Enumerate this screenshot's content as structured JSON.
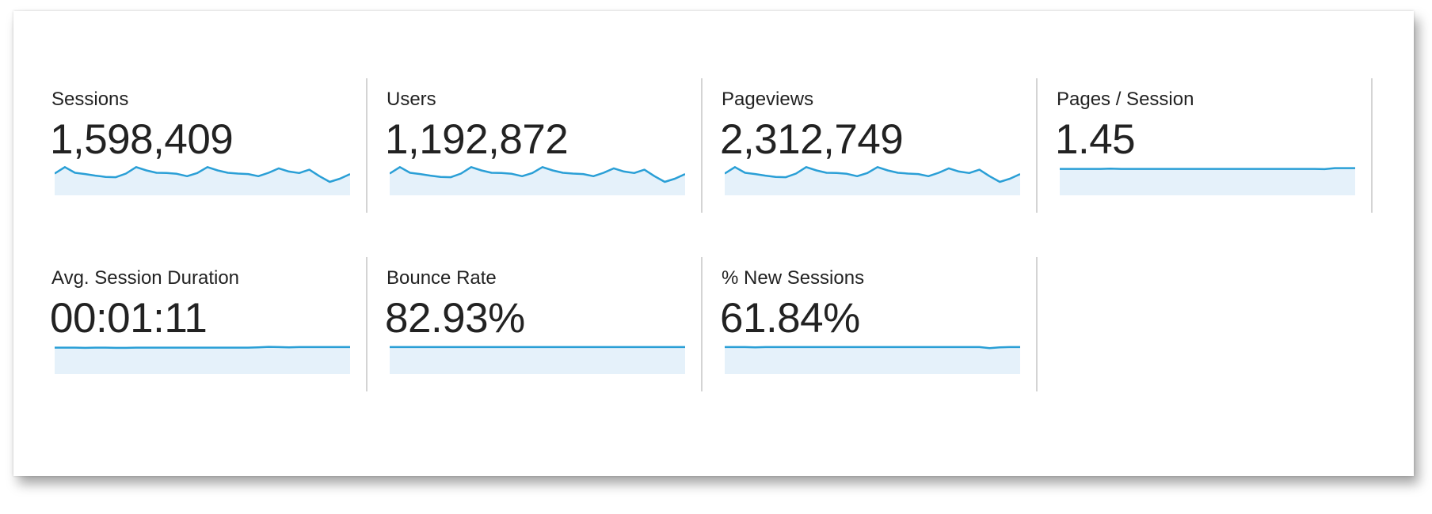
{
  "colors": {
    "line": "#2a9fd6",
    "fill": "#e5f1fa",
    "text": "#222222",
    "divider": "#d4d4d4"
  },
  "metrics": [
    {
      "label": "Sessions",
      "value": "1,598,409",
      "trend": [
        90,
        115,
        93,
        88,
        82,
        77,
        76,
        90,
        115,
        102,
        93,
        92,
        89,
        80,
        92,
        115,
        102,
        93,
        90,
        88,
        80,
        93,
        110,
        98,
        92,
        105,
        80,
        58,
        70,
        88
      ]
    },
    {
      "label": "Users",
      "value": "1,192,872",
      "trend": [
        90,
        115,
        93,
        88,
        82,
        77,
        76,
        90,
        115,
        102,
        93,
        92,
        89,
        80,
        92,
        115,
        102,
        93,
        90,
        88,
        80,
        93,
        110,
        98,
        92,
        105,
        80,
        58,
        70,
        88
      ]
    },
    {
      "label": "Pageviews",
      "value": "2,312,749",
      "trend": [
        90,
        115,
        93,
        88,
        82,
        77,
        76,
        90,
        115,
        102,
        93,
        92,
        89,
        80,
        92,
        115,
        102,
        93,
        90,
        88,
        80,
        93,
        110,
        98,
        92,
        105,
        80,
        58,
        70,
        88
      ]
    },
    {
      "label": "Pages / Session",
      "value": "1.45",
      "trend": [
        108,
        108,
        108,
        108,
        108,
        109,
        108,
        108,
        108,
        108,
        108,
        108,
        108,
        108,
        108,
        108,
        108,
        108,
        108,
        108,
        108,
        108,
        108,
        108,
        108,
        108,
        107,
        111,
        111,
        111
      ]
    },
    {
      "label": "Avg. Session Duration",
      "value": "00:01:11",
      "trend": [
        108,
        108,
        108,
        107,
        108,
        108,
        107,
        107,
        108,
        108,
        108,
        108,
        108,
        108,
        108,
        108,
        108,
        108,
        108,
        108,
        109,
        111,
        110,
        109,
        110,
        110,
        110,
        110,
        110,
        110
      ]
    },
    {
      "label": "Bounce Rate",
      "value": "82.93%",
      "trend": [
        110,
        110,
        110,
        110,
        110,
        110,
        110,
        110,
        110,
        110,
        110,
        110,
        110,
        110,
        110,
        110,
        110,
        110,
        110,
        110,
        110,
        110,
        110,
        110,
        110,
        110,
        110,
        110,
        110,
        110
      ]
    },
    {
      "label": "% New Sessions",
      "value": "61.84%",
      "trend": [
        110,
        110,
        110,
        109,
        110,
        110,
        110,
        110,
        110,
        110,
        110,
        110,
        110,
        110,
        110,
        110,
        110,
        110,
        110,
        110,
        110,
        110,
        110,
        110,
        110,
        110,
        106,
        109,
        110,
        110
      ]
    }
  ]
}
